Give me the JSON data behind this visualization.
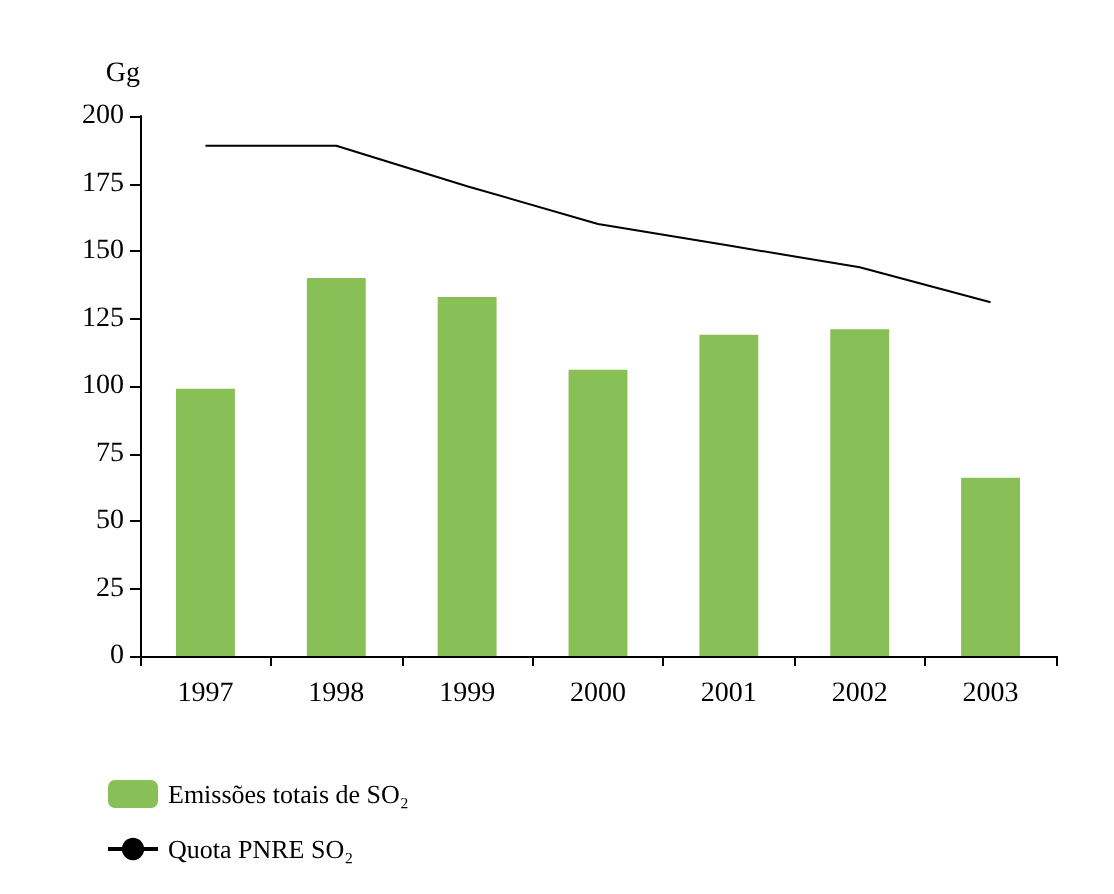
{
  "chart_data": {
    "type": "bar",
    "ylabel": "Gg",
    "categories": [
      "1997",
      "1998",
      "1999",
      "2000",
      "2001",
      "2002",
      "2003"
    ],
    "series": [
      {
        "name": "Emissões totais de SO₂",
        "color": "#88c057",
        "values": [
          99,
          140,
          133,
          106,
          119,
          121,
          66
        ]
      },
      {
        "name": "Quota PNRE SO₂",
        "type": "line",
        "color": "#000000",
        "marker": "none",
        "values": [
          189,
          189,
          174,
          160,
          152,
          144,
          131
        ]
      }
    ],
    "ylim": [
      0,
      200
    ],
    "yticks": [
      0,
      25,
      50,
      75,
      100,
      125,
      150,
      175,
      200
    ],
    "grid": false,
    "legend": "bottom left"
  }
}
